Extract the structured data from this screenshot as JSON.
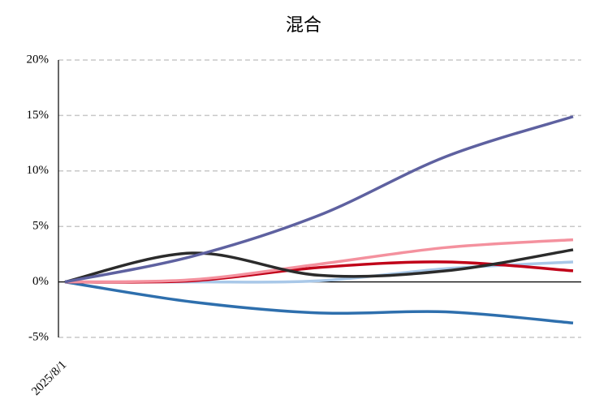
{
  "chart_data": {
    "type": "line",
    "title": "混合",
    "categories": [
      "2025/8/1",
      null,
      null,
      null,
      null
    ],
    "series": [
      {
        "color": "#2e6fad",
        "values": [
          0,
          -1.8,
          -2.8,
          -2.7,
          -3.7
        ]
      },
      {
        "color": "#a9c8e8",
        "values": [
          0,
          0,
          0.1,
          1.2,
          1.8
        ]
      },
      {
        "color": "#c00018",
        "values": [
          0,
          0.1,
          1.3,
          1.8,
          1.0
        ]
      },
      {
        "color": "#f4919e",
        "values": [
          0,
          0.2,
          1.6,
          3.1,
          3.8
        ]
      },
      {
        "color": "#2b2b2b",
        "values": [
          0,
          2.6,
          0.6,
          1.0,
          2.9
        ]
      },
      {
        "color": "#5e61a0",
        "values": [
          0,
          2.3,
          6.0,
          11.3,
          14.9
        ]
      }
    ],
    "ylim": [
      -5,
      20
    ],
    "yticks": [
      {
        "value": -5,
        "label": "-5%"
      },
      {
        "value": 0,
        "label": "0%"
      },
      {
        "value": 5,
        "label": "5%"
      },
      {
        "value": 10,
        "label": "10%"
      },
      {
        "value": 15,
        "label": "15%"
      },
      {
        "value": 20,
        "label": "20%"
      }
    ],
    "grid": true
  }
}
